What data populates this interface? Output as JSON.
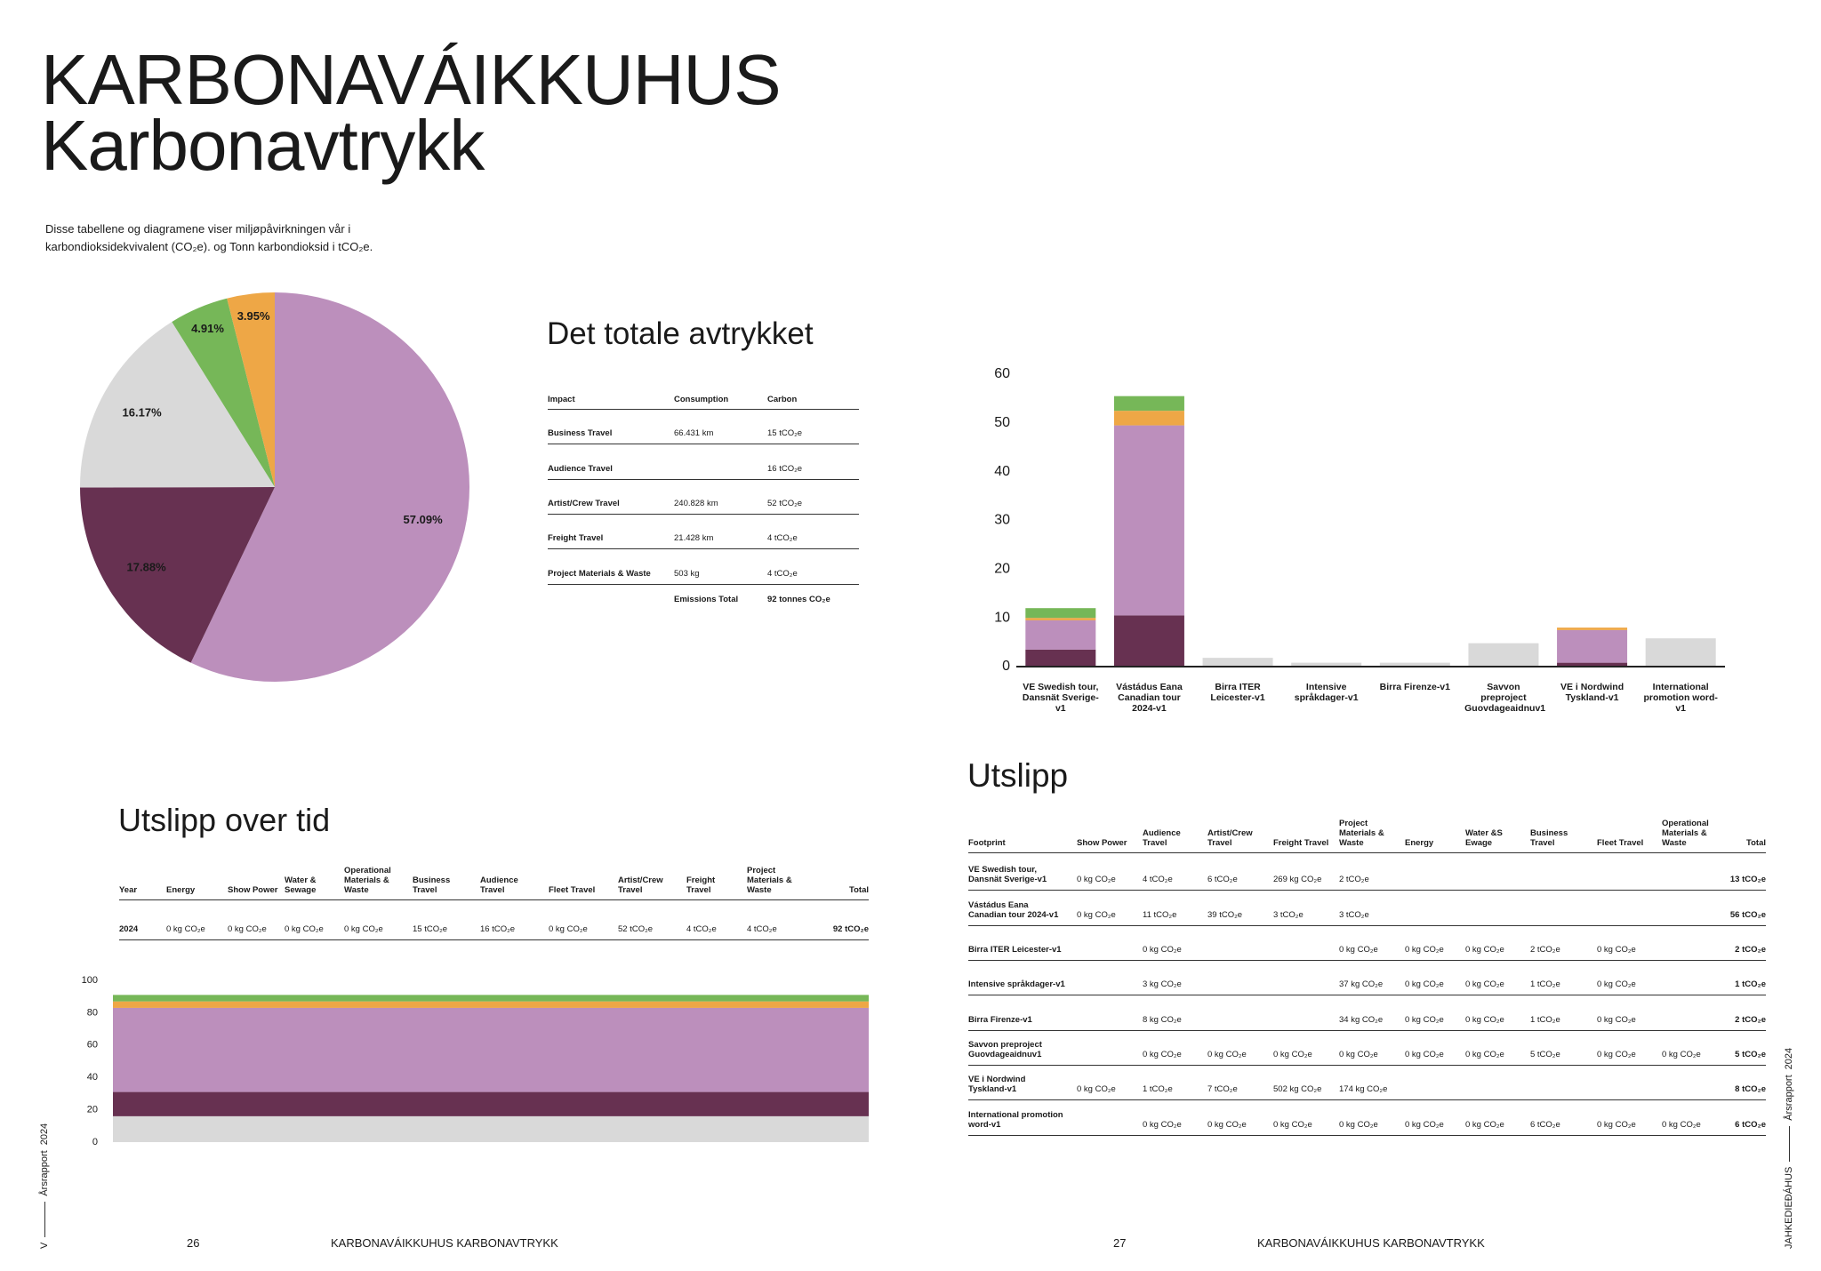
{
  "header": {
    "title_line1": "KARBONAVÁIKKUHUS",
    "title_line2": "Karbonavtrykk",
    "intro": "Disse tabellene og diagramene viser miljøpåvirkningen vår i karbondioksidekvivalent (CO₂e). og Tonn karbondioksid i tCO₂e."
  },
  "chart_data": [
    {
      "type": "pie",
      "values": [
        57.09,
        17.88,
        16.17,
        4.91,
        3.95
      ],
      "value_labels": [
        "57.09%",
        "17.88%",
        "16.17%",
        "4.91%",
        "3.95%"
      ],
      "colors": [
        "#bc8fbc",
        "#673151",
        "#d9d9d9",
        "#76b758",
        "#eea746"
      ]
    },
    {
      "type": "bar",
      "stacked": true,
      "categories": [
        "VE Swedish tour, Dansnät Sverige-v1",
        "Vástádus Eana Canadian tour 2024-v1",
        "Birra ITER Leicester-v1",
        "Intensive språkdager-v1",
        "Birra Firenze-v1",
        "Savvon preproject Guovdageaidnuv1",
        "VE i Nordwind Tyskland-v1",
        "International promotion word-v1"
      ],
      "series": [
        {
          "color": "#673151",
          "values": [
            3.5,
            10.5,
            null,
            null,
            null,
            null,
            0.8,
            null
          ]
        },
        {
          "color": "#bc8fbc",
          "values": [
            6,
            39,
            null,
            null,
            null,
            null,
            6.7,
            null
          ]
        },
        {
          "color": "#eea746",
          "values": [
            0.5,
            3,
            null,
            null,
            null,
            null,
            0.5,
            null
          ]
        },
        {
          "color": "#76b758",
          "values": [
            2,
            3,
            null,
            null,
            null,
            null,
            null,
            null
          ]
        },
        {
          "color": "#d9d9d9",
          "values": [
            null,
            null,
            1.8,
            0.8,
            0.8,
            4.8,
            null,
            5.8
          ]
        }
      ],
      "ylim": [
        0,
        60
      ],
      "yticks": [
        0,
        10,
        20,
        30,
        40,
        50,
        60
      ]
    },
    {
      "type": "area",
      "stacked": true,
      "series": [
        {
          "color": "#d9d9d9",
          "values": [
            16
          ]
        },
        {
          "color": "#673151",
          "values": [
            15
          ]
        },
        {
          "color": "#bc8fbc",
          "values": [
            52
          ]
        },
        {
          "color": "#eea746",
          "values": [
            4
          ]
        },
        {
          "color": "#76b758",
          "values": [
            4
          ]
        }
      ],
      "ylim": [
        0,
        100
      ],
      "yticks": [
        0,
        20,
        40,
        60,
        80,
        100
      ]
    }
  ],
  "total_table": {
    "title": "Det totale avtrykket",
    "header": [
      "Impact",
      "Consumption",
      "Carbon"
    ],
    "rows": [
      [
        "Business Travel",
        "66.431 km",
        "15 tCO₂e"
      ],
      [
        "Audience Travel",
        null,
        "16 tCO₂e"
      ],
      [
        "Artist/Crew Travel",
        "240.828 km",
        "52 tCO₂e"
      ],
      [
        "Freight Travel",
        "21.428 km",
        "4 tCO₂e"
      ],
      [
        "Project Materials & Waste",
        "503 kg",
        "4 tCO₂e"
      ]
    ],
    "total_label": "Emissions Total",
    "total_value": "92 tonnes CO₂e"
  },
  "time_table": {
    "title": "Utslipp over tid",
    "header": [
      "Year",
      "Energy",
      "Show Power",
      "Water & Sewage",
      "Operational Materials & Waste",
      "Business Travel",
      "Audience Travel",
      "Fleet Travel",
      "Artist/Crew Travel",
      "Freight Travel",
      "Project Materials & Waste",
      "Total"
    ],
    "rows": [
      [
        "2024",
        "0 kg CO₂e",
        "0 kg CO₂e",
        "0 kg CO₂e",
        "0 kg CO₂e",
        "15 tCO₂e",
        "16 tCO₂e",
        "0 kg CO₂e",
        "52 tCO₂e",
        "4 tCO₂e",
        "4 tCO₂e",
        "92 tCO₂e"
      ]
    ]
  },
  "emissions_table": {
    "title": "Utslipp",
    "header": [
      "Footprint",
      "Show Power",
      "Audience Travel",
      "Artist/Crew Travel",
      "Freight Travel",
      "Project Materials & Waste",
      "Energy",
      "Water &S Ewage",
      "Business Travel",
      "Fleet Travel",
      "Operational Materials & Waste",
      "Total"
    ],
    "rows": [
      [
        "VE Swedish tour, Dansnät Sverige-v1",
        "0 kg CO₂e",
        "4 tCO₂e",
        "6 tCO₂e",
        "269 kg CO₂e",
        "2 tCO₂e",
        null,
        null,
        null,
        null,
        null,
        "13 tCO₂e"
      ],
      [
        "Vástádus Eana Canadian tour 2024-v1",
        "0 kg CO₂e",
        "11 tCO₂e",
        "39 tCO₂e",
        "3 tCO₂e",
        "3 tCO₂e",
        null,
        null,
        null,
        null,
        null,
        "56 tCO₂e"
      ],
      [
        "Birra ITER Leicester-v1",
        null,
        "0 kg CO₂e",
        null,
        null,
        "0 kg CO₂e",
        "0 kg CO₂e",
        "0 kg CO₂e",
        "2 tCO₂e",
        "0 kg CO₂e",
        null,
        "2 tCO₂e"
      ],
      [
        "Intensive språkdager-v1",
        null,
        "3 kg CO₂e",
        null,
        null,
        "37 kg CO₂e",
        "0 kg CO₂e",
        "0 kg CO₂e",
        "1 tCO₂e",
        "0 kg CO₂e",
        null,
        "1 tCO₂e"
      ],
      [
        "Birra Firenze-v1",
        null,
        "8 kg CO₂e",
        null,
        null,
        "34 kg CO₂e",
        "0 kg CO₂e",
        "0 kg CO₂e",
        "1 tCO₂e",
        "0 kg CO₂e",
        null,
        "2 tCO₂e"
      ],
      [
        "Savvon preproject Guovdageaidnuv1",
        null,
        "0 kg CO₂e",
        "0 kg CO₂e",
        "0 kg CO₂e",
        "0 kg CO₂e",
        "0 kg CO₂e",
        "0 kg CO₂e",
        "5 tCO₂e",
        "0 kg CO₂e",
        "0 kg CO₂e",
        "5 tCO₂e"
      ],
      [
        "VE i Nordwind Tyskland-v1",
        "0 kg CO₂e",
        "1 tCO₂e",
        "7 tCO₂e",
        "502 kg CO₂e",
        "174 kg CO₂e",
        null,
        null,
        null,
        null,
        null,
        "8 tCO₂e"
      ],
      [
        "International promotion word-v1",
        null,
        "0 kg CO₂e",
        "0 kg CO₂e",
        "0 kg CO₂e",
        "0 kg CO₂e",
        "0 kg CO₂e",
        "0 kg CO₂e",
        "6 tCO₂e",
        "0 kg CO₂e",
        "0 kg CO₂e",
        "6 tCO₂e"
      ]
    ]
  },
  "footer": {
    "left_page": "26",
    "right_page": "27",
    "running_title": "KARBONAVÁIKKUHUS KARBONAVTRYKK",
    "left_side": [
      "V",
      "Årsrapport",
      "2024"
    ],
    "right_side": [
      "JAHKEDIEĐÁHUS",
      "Årsrapport",
      "2024"
    ]
  }
}
